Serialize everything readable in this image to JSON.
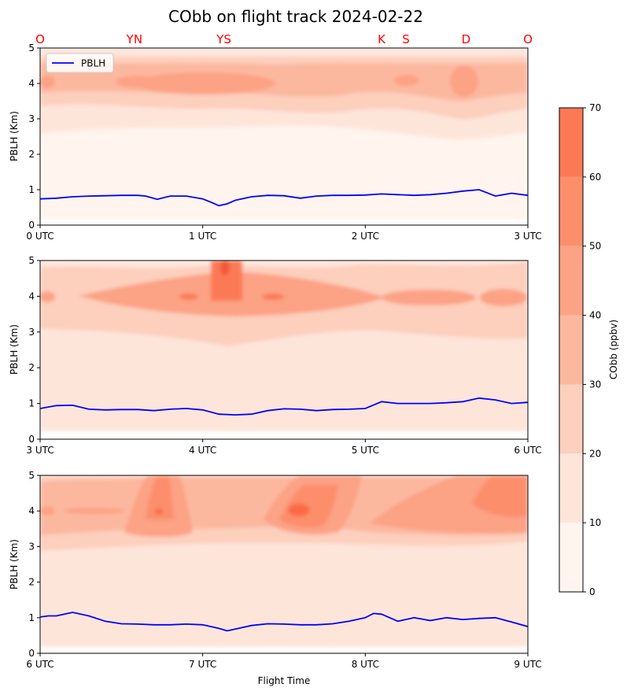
{
  "title": "CObb on flight track 2024-02-22",
  "station_labels": [
    "O",
    "YN",
    "YS",
    "K",
    "S",
    "D",
    "O"
  ],
  "station_times": [
    0,
    0.58,
    1.13,
    2.1,
    2.25,
    2.62,
    3.0
  ],
  "station_color": "#ff0000",
  "pblh_color": "#0000ff",
  "chart_data": [
    {
      "type": "contour",
      "panel": 1,
      "x_ticks": [
        "0 UTC",
        "1 UTC",
        "2 UTC",
        "3 UTC"
      ],
      "xlim": [
        0,
        3
      ],
      "ylabel": "PBLH (Km)",
      "ylim": [
        0,
        5
      ],
      "y_ticks": [
        "0",
        "1",
        "2",
        "3",
        "4",
        "5"
      ],
      "legend": {
        "entries": [
          "PBLH"
        ],
        "placement": "upper-left"
      },
      "series": [
        {
          "name": "PBLH",
          "x": [
            0,
            0.1,
            0.2,
            0.3,
            0.4,
            0.5,
            0.6,
            0.65,
            0.72,
            0.8,
            0.9,
            1.0,
            1.05,
            1.1,
            1.15,
            1.2,
            1.3,
            1.4,
            1.5,
            1.6,
            1.7,
            1.8,
            1.9,
            2.0,
            2.1,
            2.2,
            2.3,
            2.4,
            2.5,
            2.6,
            2.7,
            2.8,
            2.9,
            3.0
          ],
          "y": [
            0.74,
            0.76,
            0.8,
            0.82,
            0.83,
            0.84,
            0.84,
            0.82,
            0.73,
            0.82,
            0.82,
            0.74,
            0.65,
            0.55,
            0.6,
            0.7,
            0.8,
            0.84,
            0.83,
            0.76,
            0.82,
            0.84,
            0.84,
            0.85,
            0.88,
            0.86,
            0.84,
            0.86,
            0.9,
            0.96,
            1.0,
            0.82,
            0.9,
            0.84
          ]
        }
      ]
    },
    {
      "type": "contour",
      "panel": 2,
      "x_ticks": [
        "3 UTC",
        "4 UTC",
        "5 UTC",
        "6 UTC"
      ],
      "xlim": [
        3,
        6
      ],
      "ylabel": "PBLH (Km)",
      "ylim": [
        0,
        5
      ],
      "y_ticks": [
        "0",
        "1",
        "2",
        "3",
        "4",
        "5"
      ],
      "series": [
        {
          "name": "PBLH",
          "x": [
            3.0,
            3.1,
            3.2,
            3.3,
            3.4,
            3.5,
            3.6,
            3.7,
            3.8,
            3.9,
            4.0,
            4.1,
            4.2,
            4.3,
            4.4,
            4.5,
            4.6,
            4.7,
            4.8,
            4.9,
            5.0,
            5.1,
            5.2,
            5.3,
            5.4,
            5.5,
            5.6,
            5.7,
            5.8,
            5.9,
            6.0
          ],
          "y": [
            0.86,
            0.94,
            0.95,
            0.84,
            0.82,
            0.83,
            0.83,
            0.8,
            0.84,
            0.86,
            0.82,
            0.7,
            0.68,
            0.7,
            0.8,
            0.85,
            0.84,
            0.8,
            0.83,
            0.84,
            0.86,
            1.05,
            1.0,
            1.0,
            1.0,
            1.02,
            1.05,
            1.15,
            1.1,
            1.0,
            1.03
          ]
        }
      ]
    },
    {
      "type": "contour",
      "panel": 3,
      "x_ticks": [
        "6 UTC",
        "7 UTC",
        "8 UTC",
        "9 UTC"
      ],
      "xlim": [
        6,
        9
      ],
      "ylabel": "PBLH (Km)",
      "xlabel": "Flight Time",
      "ylim": [
        0,
        5
      ],
      "y_ticks": [
        "0",
        "1",
        "2",
        "3",
        "4",
        "5"
      ],
      "series": [
        {
          "name": "PBLH",
          "x": [
            6.0,
            6.05,
            6.1,
            6.15,
            6.2,
            6.3,
            6.4,
            6.5,
            6.6,
            6.7,
            6.8,
            6.9,
            7.0,
            7.1,
            7.15,
            7.2,
            7.3,
            7.4,
            7.5,
            7.6,
            7.7,
            7.8,
            7.9,
            8.0,
            8.05,
            8.1,
            8.2,
            8.3,
            8.4,
            8.5,
            8.6,
            8.7,
            8.8,
            8.9,
            9.0
          ],
          "y": [
            1.02,
            1.05,
            1.05,
            1.1,
            1.15,
            1.05,
            0.9,
            0.83,
            0.82,
            0.8,
            0.8,
            0.82,
            0.8,
            0.7,
            0.63,
            0.68,
            0.78,
            0.83,
            0.82,
            0.8,
            0.8,
            0.83,
            0.9,
            1.0,
            1.12,
            1.1,
            0.9,
            1.0,
            0.92,
            1.0,
            0.95,
            0.98,
            1.0,
            0.88,
            0.75
          ]
        }
      ]
    }
  ],
  "colorbar": {
    "label": "CObb (ppbv)",
    "levels": [
      0,
      10,
      20,
      30,
      40,
      50,
      60,
      70
    ],
    "colors": [
      "#fff5ee",
      "#fee5da",
      "#fdcfbd",
      "#fcb89f",
      "#fca285",
      "#fc8e6c",
      "#fb7a55"
    ]
  }
}
